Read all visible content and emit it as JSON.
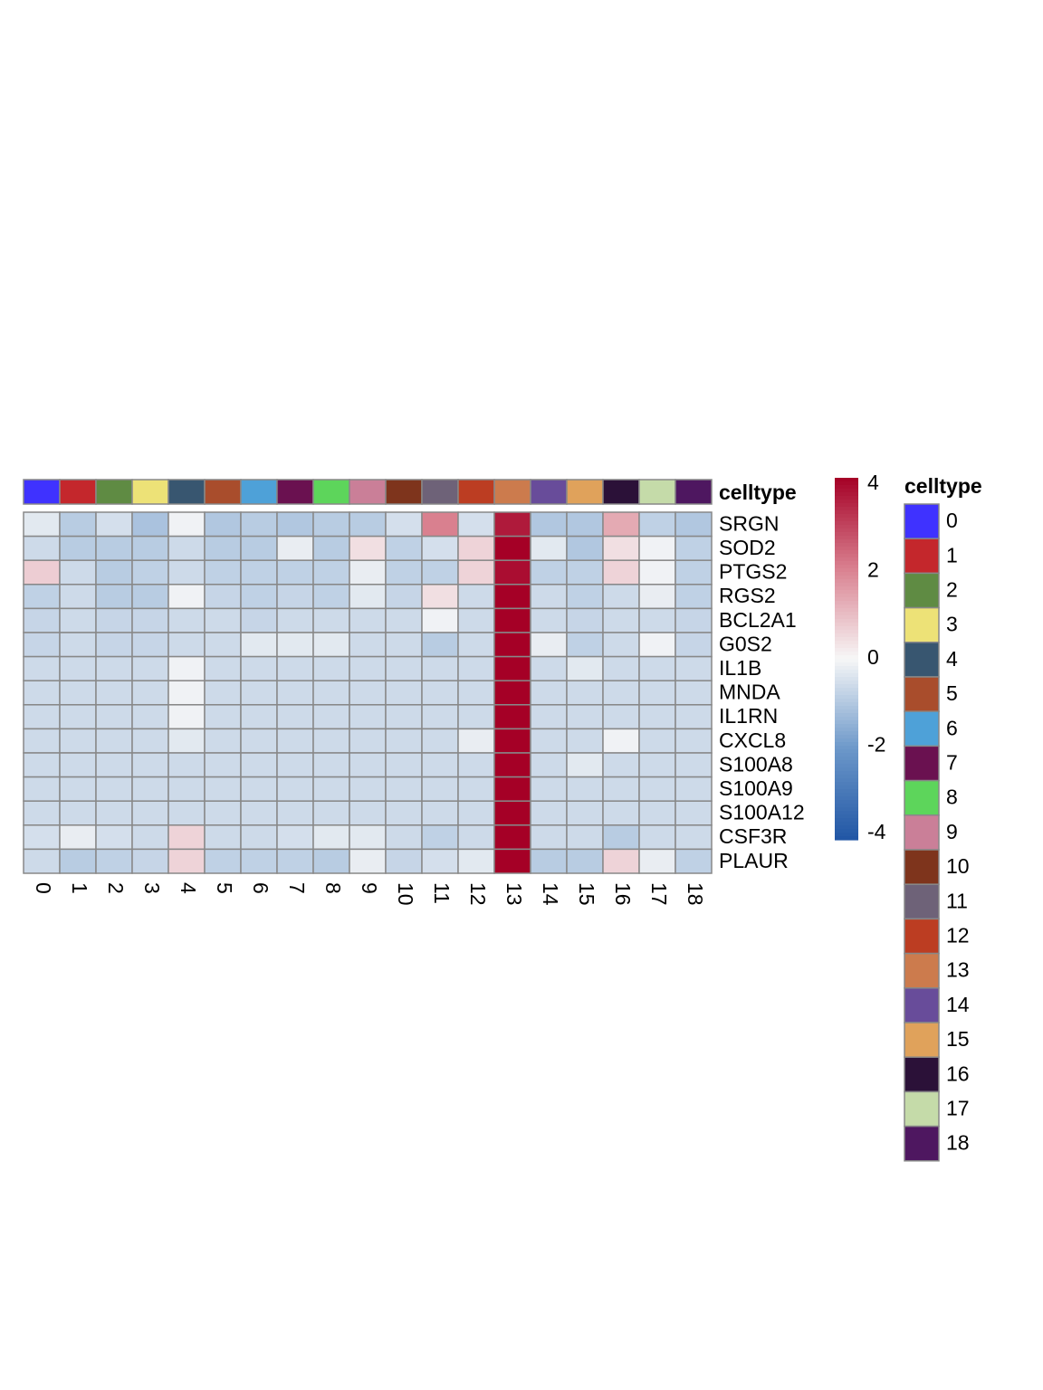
{
  "chart_data": {
    "type": "heatmap",
    "annotation_title": "celltype",
    "columns": [
      "0",
      "1",
      "2",
      "3",
      "4",
      "5",
      "6",
      "7",
      "8",
      "9",
      "10",
      "11",
      "12",
      "13",
      "14",
      "15",
      "16",
      "17",
      "18"
    ],
    "column_colors": [
      "#3f32ff",
      "#c4272c",
      "#5f8b43",
      "#ede277",
      "#385670",
      "#a94d2c",
      "#4ea1d8",
      "#6a1150",
      "#5dd55b",
      "#ca7f98",
      "#7e341c",
      "#6e6278",
      "#bc3d22",
      "#cc7b4d",
      "#684c9a",
      "#e0a25b",
      "#2b1138",
      "#c5dba9",
      "#4e1760"
    ],
    "rows": [
      "SRGN",
      "SOD2",
      "PTGS2",
      "RGS2",
      "BCL2A1",
      "G0S2",
      "IL1B",
      "MNDA",
      "IL1RN",
      "CXCL8",
      "S100A8",
      "S100A9",
      "S100A12",
      "CSF3R",
      "PLAUR"
    ],
    "values": [
      [
        -0.3,
        -0.9,
        -0.5,
        -1.1,
        -0.1,
        -1.0,
        -0.9,
        -1.0,
        -0.9,
        -0.9,
        -0.5,
        2.0,
        -0.5,
        3.6,
        -1.0,
        -1.0,
        1.3,
        -0.8,
        -1.0
      ],
      [
        -0.6,
        -0.9,
        -0.9,
        -0.9,
        -0.6,
        -0.9,
        -0.9,
        -0.2,
        -0.9,
        0.4,
        -0.8,
        -0.5,
        0.6,
        4.0,
        -0.3,
        -1.0,
        0.4,
        -0.1,
        -0.8
      ],
      [
        0.7,
        -0.6,
        -0.9,
        -0.8,
        -0.6,
        -0.8,
        -0.8,
        -0.8,
        -0.8,
        -0.2,
        -0.8,
        -0.8,
        0.6,
        3.8,
        -0.8,
        -0.8,
        0.6,
        -0.1,
        -0.8
      ],
      [
        -0.8,
        -0.6,
        -0.9,
        -0.9,
        -0.1,
        -0.7,
        -0.8,
        -0.7,
        -0.8,
        -0.3,
        -0.7,
        0.4,
        -0.6,
        4.0,
        -0.6,
        -0.8,
        -0.6,
        -0.2,
        -0.8
      ],
      [
        -0.7,
        -0.6,
        -0.7,
        -0.7,
        -0.6,
        -0.6,
        -0.7,
        -0.6,
        -0.6,
        -0.6,
        -0.6,
        -0.1,
        -0.6,
        4.0,
        -0.6,
        -0.7,
        -0.6,
        -0.6,
        -0.7
      ],
      [
        -0.7,
        -0.6,
        -0.7,
        -0.7,
        -0.6,
        -0.6,
        -0.3,
        -0.3,
        -0.3,
        -0.6,
        -0.6,
        -0.9,
        -0.6,
        4.0,
        -0.2,
        -0.8,
        -0.6,
        -0.1,
        -0.7
      ],
      [
        -0.6,
        -0.6,
        -0.6,
        -0.6,
        -0.1,
        -0.6,
        -0.6,
        -0.6,
        -0.6,
        -0.6,
        -0.6,
        -0.6,
        -0.6,
        4.0,
        -0.6,
        -0.3,
        -0.6,
        -0.6,
        -0.6
      ],
      [
        -0.6,
        -0.6,
        -0.6,
        -0.6,
        -0.1,
        -0.6,
        -0.6,
        -0.6,
        -0.6,
        -0.6,
        -0.6,
        -0.6,
        -0.6,
        4.0,
        -0.6,
        -0.6,
        -0.6,
        -0.6,
        -0.6
      ],
      [
        -0.6,
        -0.6,
        -0.6,
        -0.6,
        -0.1,
        -0.6,
        -0.6,
        -0.6,
        -0.6,
        -0.6,
        -0.6,
        -0.6,
        -0.6,
        4.0,
        -0.6,
        -0.6,
        -0.6,
        -0.6,
        -0.6
      ],
      [
        -0.6,
        -0.6,
        -0.6,
        -0.6,
        -0.3,
        -0.6,
        -0.6,
        -0.6,
        -0.6,
        -0.6,
        -0.6,
        -0.6,
        -0.2,
        4.0,
        -0.6,
        -0.6,
        -0.1,
        -0.6,
        -0.6
      ],
      [
        -0.6,
        -0.6,
        -0.6,
        -0.6,
        -0.6,
        -0.6,
        -0.6,
        -0.6,
        -0.6,
        -0.6,
        -0.6,
        -0.6,
        -0.6,
        4.0,
        -0.6,
        -0.3,
        -0.6,
        -0.6,
        -0.6
      ],
      [
        -0.6,
        -0.6,
        -0.6,
        -0.6,
        -0.6,
        -0.6,
        -0.6,
        -0.6,
        -0.6,
        -0.6,
        -0.6,
        -0.6,
        -0.6,
        4.0,
        -0.6,
        -0.6,
        -0.6,
        -0.6,
        -0.6
      ],
      [
        -0.6,
        -0.6,
        -0.6,
        -0.6,
        -0.6,
        -0.6,
        -0.6,
        -0.6,
        -0.6,
        -0.6,
        -0.6,
        -0.6,
        -0.6,
        4.0,
        -0.6,
        -0.6,
        -0.6,
        -0.6,
        -0.6
      ],
      [
        -0.5,
        -0.2,
        -0.5,
        -0.6,
        0.6,
        -0.6,
        -0.6,
        -0.5,
        -0.3,
        -0.3,
        -0.6,
        -0.8,
        -0.6,
        4.0,
        -0.6,
        -0.6,
        -0.9,
        -0.6,
        -0.6
      ],
      [
        -0.6,
        -0.9,
        -0.8,
        -0.7,
        0.6,
        -0.8,
        -0.8,
        -0.8,
        -0.9,
        -0.2,
        -0.7,
        -0.5,
        -0.3,
        4.0,
        -0.9,
        -0.9,
        0.6,
        -0.2,
        -0.8
      ]
    ],
    "zlim": [
      -4,
      4
    ],
    "zticks": [
      4,
      2,
      0,
      -2,
      -4
    ],
    "colorscale": [
      "#2156a5",
      "#6b97c9",
      "#f7f7f7",
      "#d9808f",
      "#a50026"
    ]
  }
}
